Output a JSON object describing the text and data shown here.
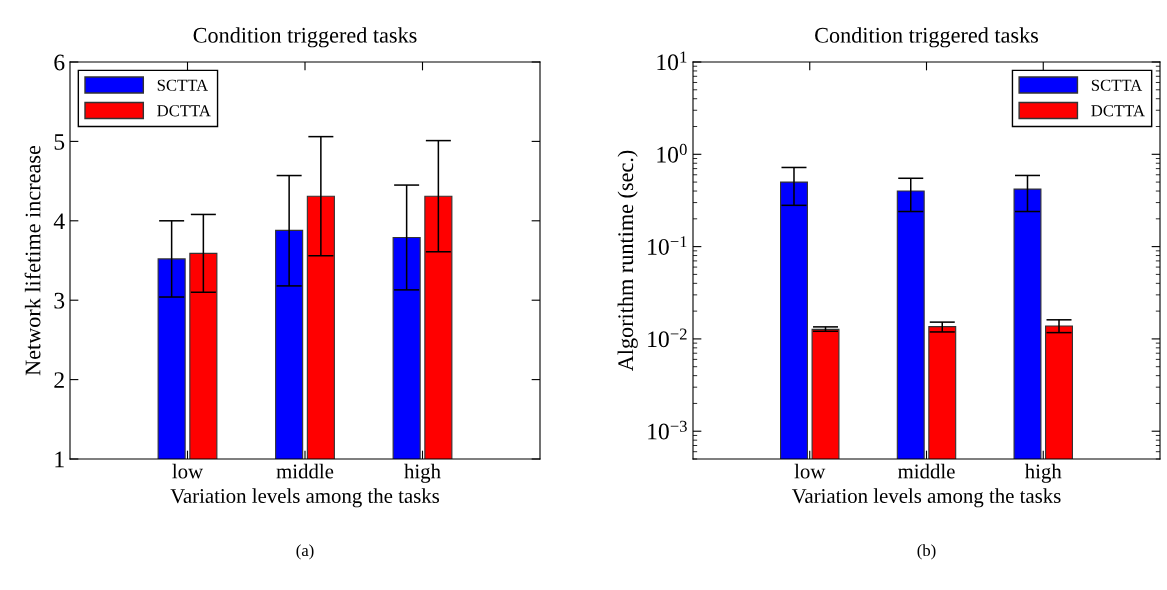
{
  "chart_data": [
    {
      "type": "bar",
      "title": "Condition triggered tasks",
      "xlabel": "Variation levels among the tasks",
      "ylabel": "Network lifetime increase",
      "categories": [
        "low",
        "middle",
        "high"
      ],
      "series": [
        {
          "name": "SCTTA",
          "color": "#0000ff",
          "values": [
            3.52,
            3.88,
            3.79
          ],
          "errors": [
            [
              3.04,
              4.0
            ],
            [
              3.18,
              4.57
            ],
            [
              3.13,
              4.45
            ]
          ]
        },
        {
          "name": "DCTTA",
          "color": "#ff0000",
          "values": [
            3.59,
            4.31,
            4.31
          ],
          "errors": [
            [
              3.1,
              4.08
            ],
            [
              3.56,
              5.06
            ],
            [
              3.61,
              5.01
            ]
          ]
        }
      ],
      "ylim": [
        1,
        6
      ],
      "yticks": [
        1,
        2,
        3,
        4,
        5,
        6
      ],
      "legend": "top left",
      "grid": false,
      "annotations": [
        "(a)"
      ]
    },
    {
      "type": "bar",
      "title": "Condition triggered tasks",
      "xlabel": "Variation levels among the tasks",
      "ylabel": "Algorithm runtime (sec.)",
      "categories": [
        "low",
        "middle",
        "high"
      ],
      "series": [
        {
          "name": "SCTTA",
          "color": "#0000ff",
          "values": [
            0.5,
            0.4,
            0.42
          ],
          "errors": [
            [
              0.28,
              0.72
            ],
            [
              0.24,
              0.55
            ],
            [
              0.24,
              0.59
            ]
          ]
        },
        {
          "name": "DCTTA",
          "color": "#ff0000",
          "values": [
            0.0127,
            0.0136,
            0.0138
          ],
          "errors": [
            [
              0.0121,
              0.0135
            ],
            [
              0.0119,
              0.0152
            ],
            [
              0.0117,
              0.0161
            ]
          ]
        }
      ],
      "log": "y",
      "ylim": [
        0.0005,
        10
      ],
      "yticks": [
        {
          "value": 0.001,
          "label": "10$^{−3}$"
        },
        {
          "value": 0.01,
          "label": "10$^{−2}$"
        },
        {
          "value": 0.1,
          "label": "10$^{−1}$"
        },
        {
          "value": 1,
          "label": "10$^{0}$"
        },
        {
          "value": 10,
          "label": "10$^{1}$"
        }
      ],
      "legend": "top right",
      "grid": false,
      "annotations": [
        "(b)"
      ]
    }
  ]
}
